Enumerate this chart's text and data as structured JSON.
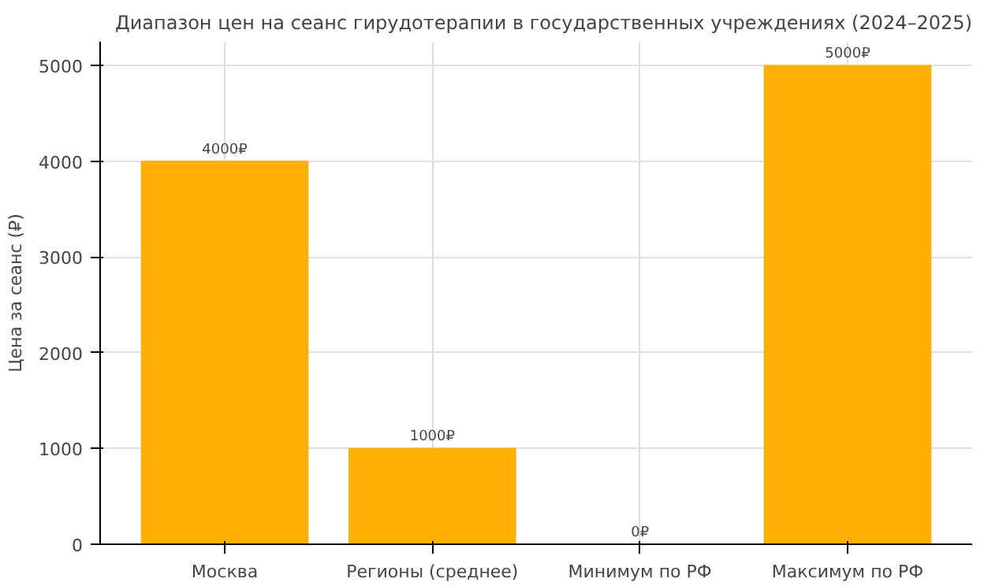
{
  "chart_data": {
    "type": "bar",
    "title": "Диапазон цен на сеанс гирудотерапии в государственных учреждениях (2024–2025)",
    "ylabel": "Цена за сеанс (₽)",
    "categories": [
      "Москва",
      "Регионы (среднее)",
      "Минимум по РФ",
      "Максимум по РФ"
    ],
    "values": [
      4000,
      1000,
      0,
      5000
    ],
    "value_labels": [
      "4000₽",
      "1000₽",
      "0₽",
      "5000₽"
    ],
    "color": "#ffb000",
    "ylim": [
      0,
      5250
    ],
    "yticks": [
      0,
      1000,
      2000,
      3000,
      4000,
      5000
    ],
    "grid": true
  }
}
